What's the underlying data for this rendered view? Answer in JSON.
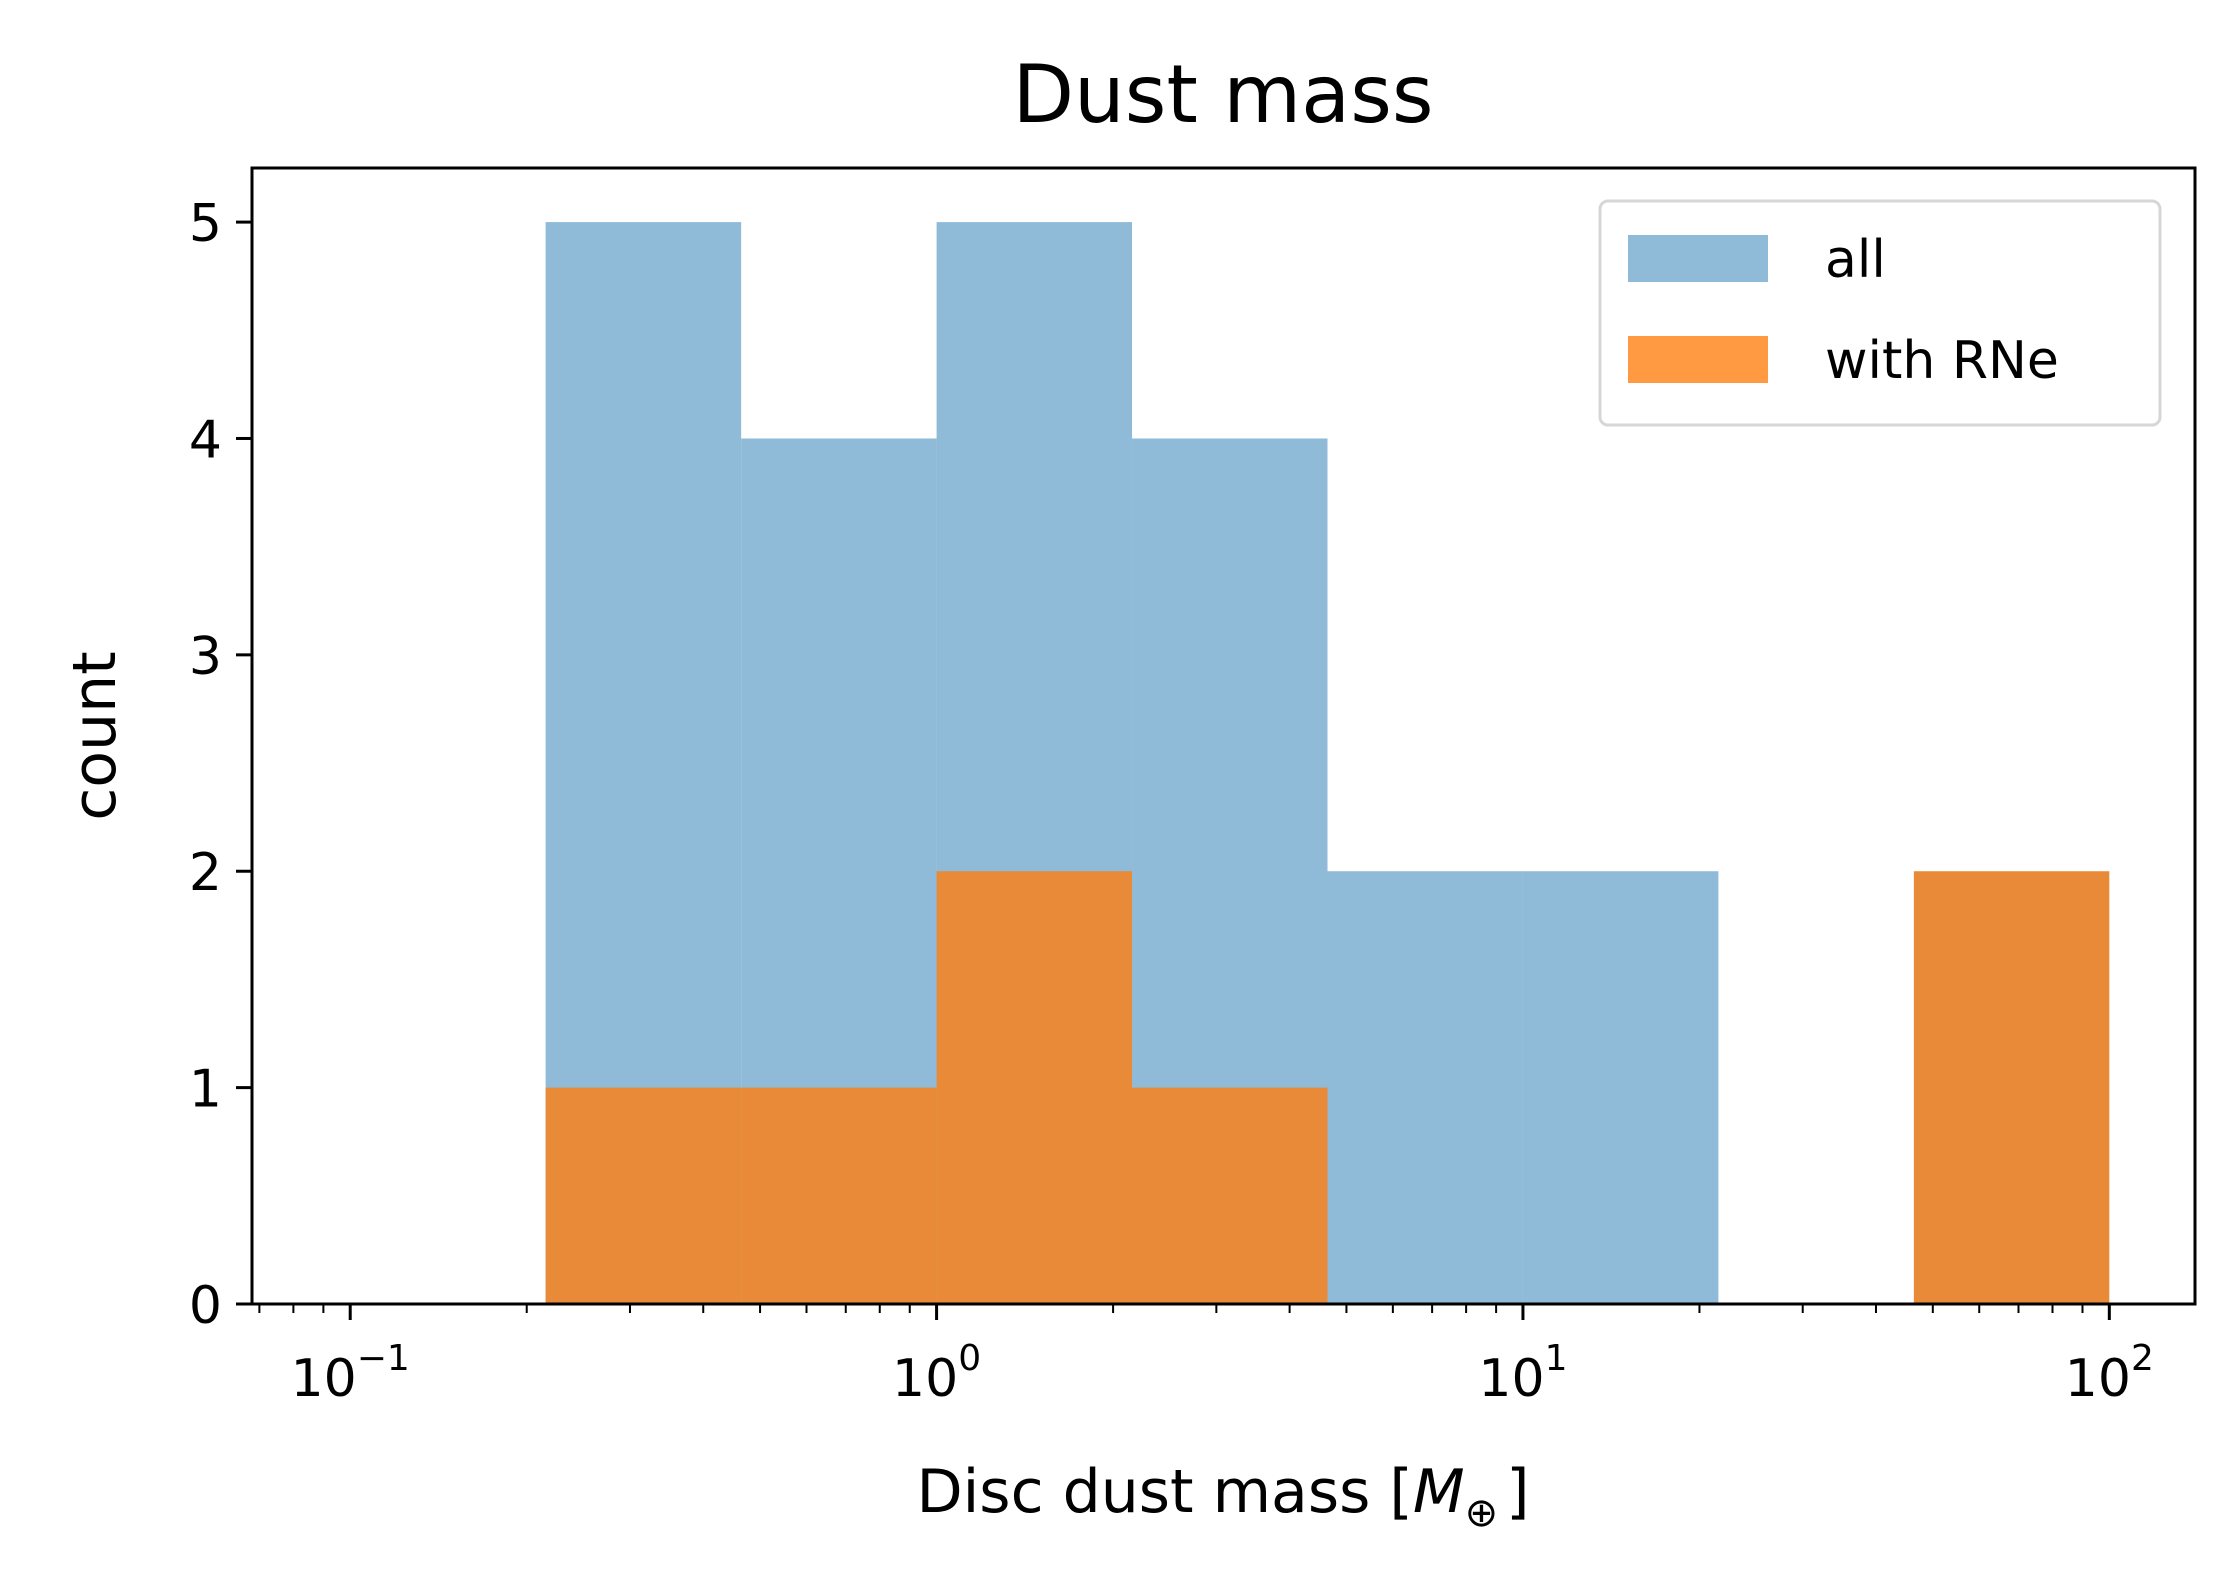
{
  "chart_data": {
    "type": "bar",
    "title": "Dust mass",
    "xlabel_main": "Disc dust mass [",
    "xlabel_symbol": "M",
    "xlabel_subscript": "⊕",
    "xlabel_close": "]",
    "ylabel": "count",
    "x_scale": "log",
    "xlim": [
      0.068,
      140
    ],
    "ylim": [
      0,
      5.25
    ],
    "x_ticks": [
      {
        "value": 0.1,
        "base": "10",
        "exp": "−1"
      },
      {
        "value": 1,
        "base": "10",
        "exp": "0"
      },
      {
        "value": 10,
        "base": "10",
        "exp": "1"
      },
      {
        "value": 100,
        "base": "10",
        "exp": "2"
      }
    ],
    "y_ticks": [
      0,
      1,
      2,
      3,
      4,
      5
    ],
    "legend_position": "top-right",
    "bin_edges": [
      0.2154,
      0.4642,
      1.0,
      2.1544,
      4.6416,
      10.0,
      21.544,
      46.416,
      100.0
    ],
    "series": [
      {
        "name": "all",
        "color": "#8fbad8",
        "values": [
          5,
          4,
          5,
          4,
          2,
          2,
          0,
          0
        ]
      },
      {
        "name": "with RNe",
        "color": "#e88a38",
        "values": [
          1,
          1,
          2,
          1,
          0,
          0,
          0,
          2
        ]
      }
    ],
    "legend_swatch_colors": [
      "#8fbad8",
      "#ff9a42"
    ],
    "grid": false
  }
}
